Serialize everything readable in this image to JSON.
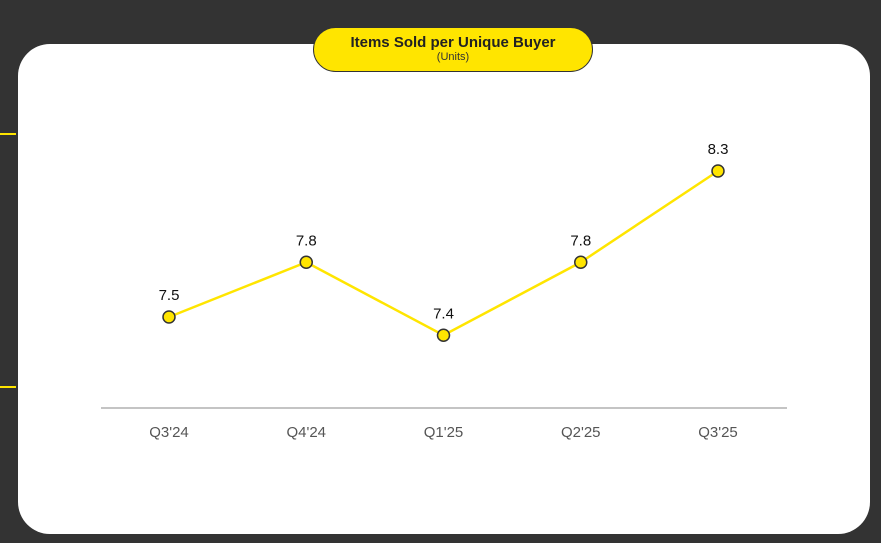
{
  "chart_data": {
    "type": "line",
    "title": "Items Sold per Unique Buyer",
    "subtitle": "(Units)",
    "categories": [
      "Q3'24",
      "Q4'24",
      "Q1'25",
      "Q2'25",
      "Q3'25"
    ],
    "series": [
      {
        "values": [
          7.5,
          7.8,
          7.4,
          7.8,
          8.3
        ],
        "data_labels": [
          "7.5",
          "7.8",
          "7.4",
          "7.8",
          "8.3"
        ]
      }
    ],
    "grid": false,
    "legend": "none",
    "colors": {
      "line": "#FFE500",
      "marker_fill": "#FFE500",
      "marker_stroke": "#333333",
      "axis": "#888888",
      "background": "#333333",
      "card": "#ffffff"
    }
  }
}
